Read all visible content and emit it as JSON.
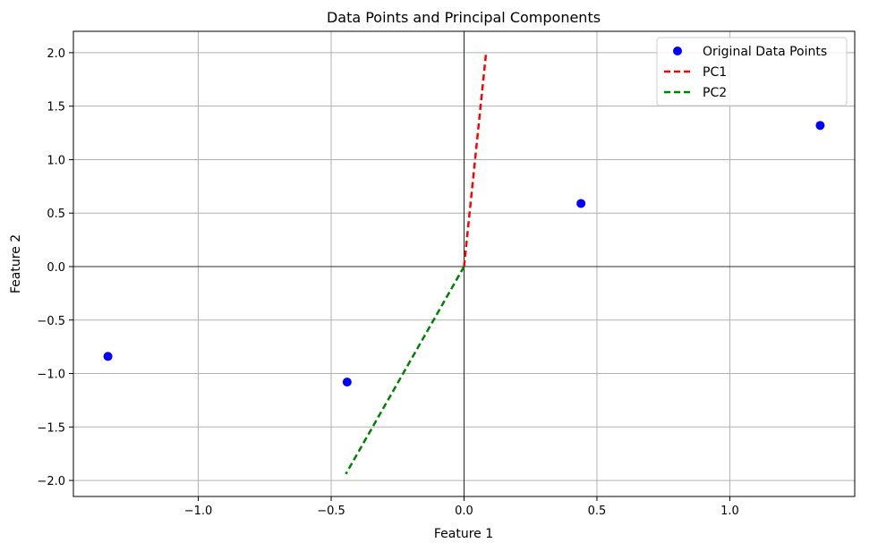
{
  "chart_data": {
    "type": "scatter",
    "title": "Data Points and Principal Components",
    "xlabel": "Feature 1",
    "ylabel": "Feature 2",
    "xlim": [
      -1.47,
      1.47
    ],
    "ylim": [
      -2.15,
      2.2
    ],
    "xticks": [
      -1.0,
      -0.5,
      0.0,
      0.5,
      1.0
    ],
    "xtick_labels": [
      "−1.0",
      "−0.5",
      "0.0",
      "0.5",
      "1.0"
    ],
    "yticks": [
      2.0,
      1.5,
      1.0,
      0.5,
      0.0,
      -0.5,
      -1.0,
      -1.5,
      -2.0
    ],
    "ytick_labels": [
      "2.0",
      "1.5",
      "1.0",
      "0.5",
      "0.0",
      "−0.5",
      "−1.0",
      "−1.5",
      "−2.0"
    ],
    "grid": true,
    "reference_lines": {
      "x": 0,
      "y": 0,
      "color": "#000000"
    },
    "legend_position": "top-right",
    "points": {
      "name": "Original Data Points",
      "color": "#0000ff",
      "x": [
        -1.34,
        -0.44,
        0.44,
        1.34
      ],
      "y": [
        -0.84,
        -1.08,
        0.59,
        1.32
      ]
    },
    "lines": [
      {
        "name": "PC1",
        "color": "#ff0000",
        "style": "dashed",
        "x": [
          0.0,
          0.083
        ],
        "y": [
          0.0,
          2.0
        ]
      },
      {
        "name": "PC2",
        "color": "#008000",
        "style": "dashed",
        "x": [
          0.0,
          -0.445
        ],
        "y": [
          0.0,
          -1.94
        ]
      }
    ]
  }
}
